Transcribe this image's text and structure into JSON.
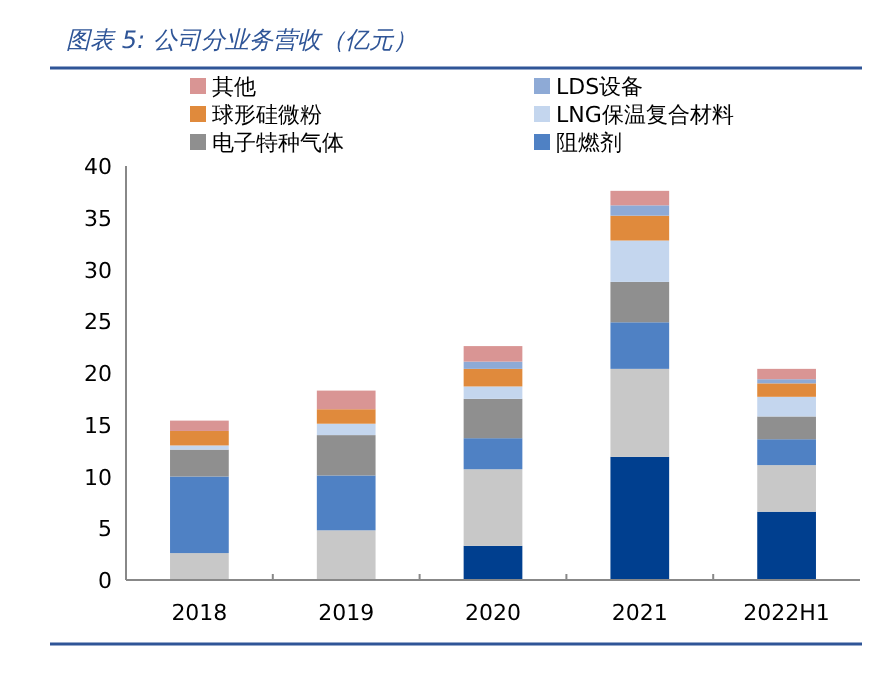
{
  "chart_data": {
    "type": "bar",
    "stacked": true,
    "title": "图表 5: 公司分业务营收（亿元）",
    "categories": [
      "2018",
      "2019",
      "2020",
      "2021",
      "2022H1"
    ],
    "series": [
      {
        "color": "#003f8f",
        "values": [
          0,
          0,
          3.3,
          11.9,
          6.6
        ]
      },
      {
        "color": "#c8c8c8",
        "values": [
          2.6,
          4.8,
          7.4,
          8.5,
          4.5
        ]
      },
      {
        "name": "阻燃剂",
        "color": "#4f81c4",
        "values": [
          7.4,
          5.3,
          3.0,
          4.5,
          2.5
        ]
      },
      {
        "name": "电子特种气体",
        "color": "#8f8f8f",
        "values": [
          2.6,
          3.9,
          3.8,
          3.9,
          2.2
        ]
      },
      {
        "name": "LNG保温复合材料",
        "color": "#c4d6ee",
        "values": [
          0.4,
          1.1,
          1.2,
          4.0,
          1.9
        ]
      },
      {
        "name": "球形硅微粉",
        "color": "#e08a3c",
        "values": [
          1.4,
          1.4,
          1.7,
          2.4,
          1.3
        ]
      },
      {
        "name": "LDS设备",
        "color": "#8eaad6",
        "values": [
          0,
          0,
          0.7,
          1.0,
          0.4
        ]
      },
      {
        "name": "其他",
        "color": "#d99594",
        "values": [
          1.0,
          1.8,
          1.5,
          1.4,
          1.0
        ]
      }
    ],
    "ylim": [
      0,
      40
    ],
    "yticks": [
      0,
      5,
      10,
      15,
      20,
      25,
      30,
      35,
      40
    ],
    "grid": false,
    "legend": "top"
  }
}
